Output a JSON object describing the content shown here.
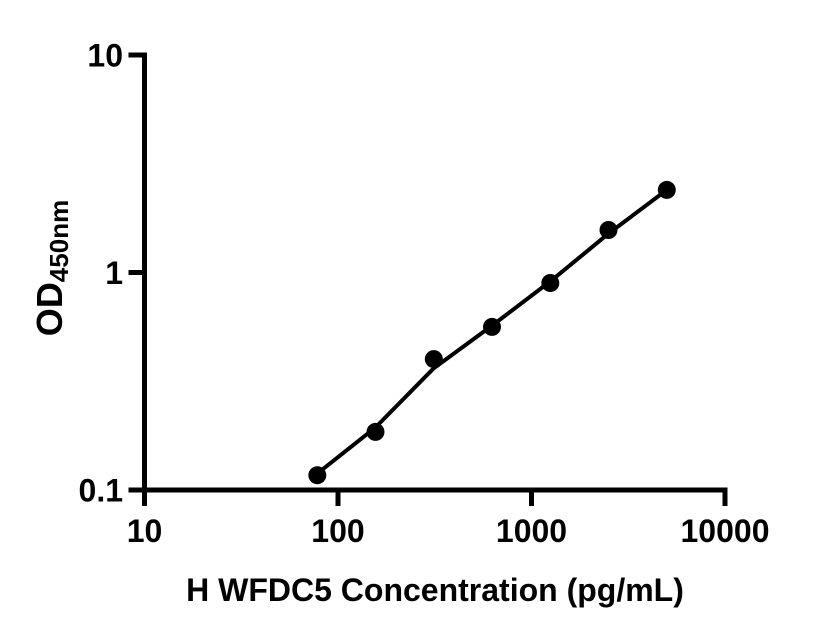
{
  "figure": {
    "background_color": "#ffffff",
    "ink_color": "#000000"
  },
  "chart_data": {
    "type": "scatter",
    "title": "",
    "xlabel": "H WFDC5 Concentration (pg/mL)",
    "ylabel_main": "OD",
    "ylabel_subscript": "450nm",
    "x_scale": "log10",
    "y_scale": "log10",
    "xlim": [
      10,
      10000
    ],
    "ylim": [
      0.1,
      10
    ],
    "grid": false,
    "legend": "none",
    "x_ticks": [
      {
        "value": 10,
        "label": "10"
      },
      {
        "value": 100,
        "label": "100"
      },
      {
        "value": 1000,
        "label": "1000"
      },
      {
        "value": 10000,
        "label": "10000"
      }
    ],
    "y_ticks": [
      {
        "value": 10,
        "label": "10"
      },
      {
        "value": 1,
        "label": "1"
      },
      {
        "value": 0.1,
        "label": "0.1"
      }
    ],
    "series": [
      {
        "name": "standard-curve-fit-line",
        "type": "line",
        "points": [
          {
            "x": 78.125,
            "y": 0.119
          },
          {
            "x": 156.25,
            "y": 0.194
          },
          {
            "x": 312.5,
            "y": 0.363
          },
          {
            "x": 625,
            "y": 0.57
          },
          {
            "x": 1250,
            "y": 0.91
          },
          {
            "x": 2500,
            "y": 1.51
          },
          {
            "x": 5000,
            "y": 2.398
          }
        ]
      },
      {
        "name": "standard-data-points",
        "type": "scatter",
        "points": [
          {
            "x": 78.125,
            "y": 0.117
          },
          {
            "x": 156.25,
            "y": 0.185
          },
          {
            "x": 312.5,
            "y": 0.4
          },
          {
            "x": 625,
            "y": 0.562
          },
          {
            "x": 1250,
            "y": 0.895
          },
          {
            "x": 2500,
            "y": 1.568
          },
          {
            "x": 5000,
            "y": 2.398
          }
        ]
      }
    ]
  }
}
